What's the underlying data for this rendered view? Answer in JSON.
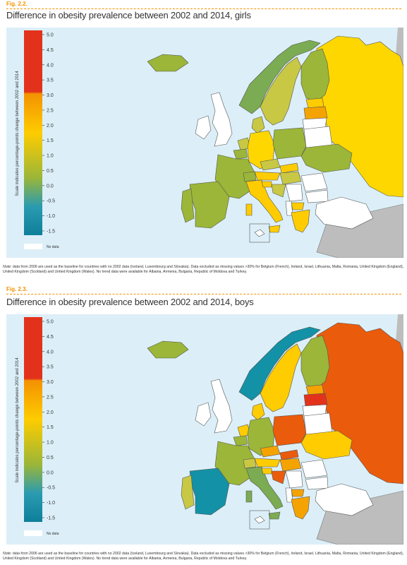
{
  "figures": [
    {
      "label": "Fig. 2.2.",
      "title": "Difference in obesity prevalence between 2002 and 2014, girls",
      "note_prefix": "Note",
      "note": ": data from 2006 are used as the baseline for countries with no 2002 data (Iceland, Luxembourg and Slovakia). Data excluded as missing values >30% for Belgium (French), Ireland, Israel, Lithuania, Malta, Romania, United Kingdom (England), United Kingdom (Scotland) and United Kingdom (Wales). No trend data were available for Albania, Armenia, Bulgaria, Republic of Moldova and Turkey."
    },
    {
      "label": "Fig. 2.3.",
      "title": "Difference in obesity prevalence between 2002 and 2014, boys",
      "note_prefix": "Note",
      "note": ": data from 2006 are used as the baseline for countries with no 2002 data (Iceland, Luxembourg and Slovakia). Data excluded as missing values >30% for Belgium (French), Ireland, Israel, Lithuania, Malta, Romania, United Kingdom (England), United Kingdom (Scotland) and United Kingdom (Wales). No trend data were available for Albania, Armenia, Bulgaria, Republic of Moldova and Turkey."
    }
  ],
  "legend": {
    "axis_title": "Scale indicates percentage-points change between 2002 and 2014",
    "ticks": [
      "5.0",
      "4.5",
      "4.0",
      "3.5",
      "3.0",
      "2.5",
      "2.0",
      "1.5",
      "1.0",
      "0.5",
      "0.0",
      "-0.5",
      "-1.0",
      "-1.5"
    ],
    "no_data_label": "No data",
    "colors": {
      "high": "#e3321b",
      "upper": "#f39200",
      "mid": "#fecc00",
      "low": "#9bb638",
      "neg": "#2a9bb0",
      "bottom": "#0e7f9a",
      "no_data": "#ffffff"
    }
  },
  "map_colors": {
    "sea": "#dceff8",
    "outside": "#bdbdbd",
    "no_data": "#ffffff",
    "border": "#555555"
  }
}
